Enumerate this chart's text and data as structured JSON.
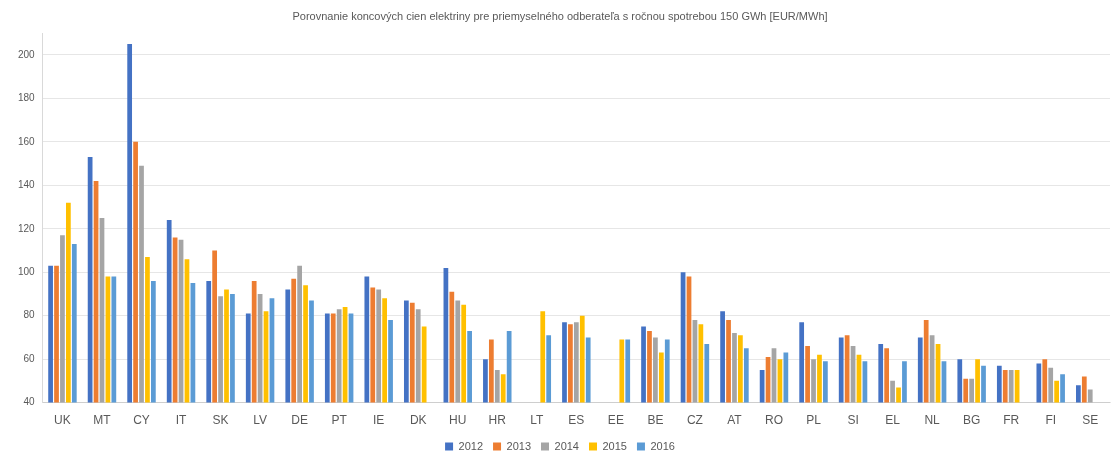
{
  "chart_data": {
    "type": "bar",
    "title": "Porovnanie koncových cien elektriny pre priemyselného odberateľa s ročnou spotrebou 150 GWh [EUR/MWh]",
    "categories": [
      "UK",
      "MT",
      "CY",
      "IT",
      "SK",
      "LV",
      "DE",
      "PT",
      "IE",
      "DK",
      "HU",
      "HR",
      "LT",
      "ES",
      "EE",
      "BE",
      "CZ",
      "AT",
      "RO",
      "PL",
      "SI",
      "EL",
      "NL",
      "BG",
      "FR",
      "FI",
      "SE"
    ],
    "series": [
      {
        "name": "2012",
        "color": "#4472c4",
        "values": [
          103,
          153,
          205,
          124,
          96,
          81,
          92,
          81,
          98,
          87,
          102,
          60,
          null,
          77,
          null,
          75,
          100,
          82,
          55,
          77,
          70,
          67,
          70,
          60,
          57,
          58,
          48
        ]
      },
      {
        "name": "2013",
        "color": "#ed7d31",
        "values": [
          103,
          142,
          160,
          116,
          110,
          96,
          97,
          81,
          93,
          86,
          91,
          69,
          null,
          76,
          null,
          73,
          98,
          78,
          61,
          66,
          71,
          65,
          78,
          51,
          55,
          60,
          52
        ]
      },
      {
        "name": "2014",
        "color": "#a5a5a5",
        "values": [
          117,
          125,
          149,
          115,
          89,
          90,
          103,
          83,
          92,
          83,
          87,
          55,
          null,
          77,
          null,
          70,
          78,
          72,
          65,
          60,
          66,
          50,
          71,
          51,
          55,
          56,
          46
        ]
      },
      {
        "name": "2015",
        "color": "#ffc000",
        "values": [
          132,
          98,
          107,
          106,
          92,
          82,
          94,
          84,
          88,
          75,
          85,
          53,
          82,
          80,
          69,
          63,
          76,
          71,
          60,
          62,
          62,
          47,
          67,
          60,
          55,
          50,
          null
        ]
      },
      {
        "name": "2016",
        "color": "#5b9bd5",
        "values": [
          113,
          98,
          96,
          95,
          90,
          88,
          87,
          81,
          78,
          null,
          73,
          73,
          71,
          70,
          69,
          69,
          67,
          65,
          63,
          59,
          59,
          59,
          59,
          57,
          null,
          53,
          null
        ]
      }
    ],
    "ylim": [
      40,
      210
    ],
    "yticks": [
      40,
      60,
      80,
      100,
      120,
      140,
      160,
      180,
      200
    ],
    "grid": "y",
    "legend": "bottom"
  }
}
